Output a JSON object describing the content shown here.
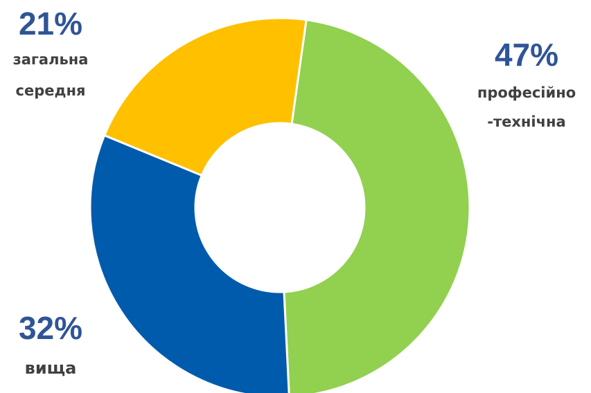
{
  "chart_data": {
    "type": "pie",
    "variant": "donut",
    "slices": [
      {
        "value": 47,
        "percent_label": "47%",
        "label_lines": [
          "професійно",
          "-технічна"
        ],
        "color": "#92D050"
      },
      {
        "value": 32,
        "percent_label": "32%",
        "label_lines": [
          "вища"
        ],
        "color": "#005BAC"
      },
      {
        "value": 21,
        "percent_label": "21%",
        "label_lines": [
          "загальна",
          "середня"
        ],
        "color": "#FFC000"
      }
    ],
    "label_color": "#404040",
    "percent_color": "#2F5597"
  }
}
